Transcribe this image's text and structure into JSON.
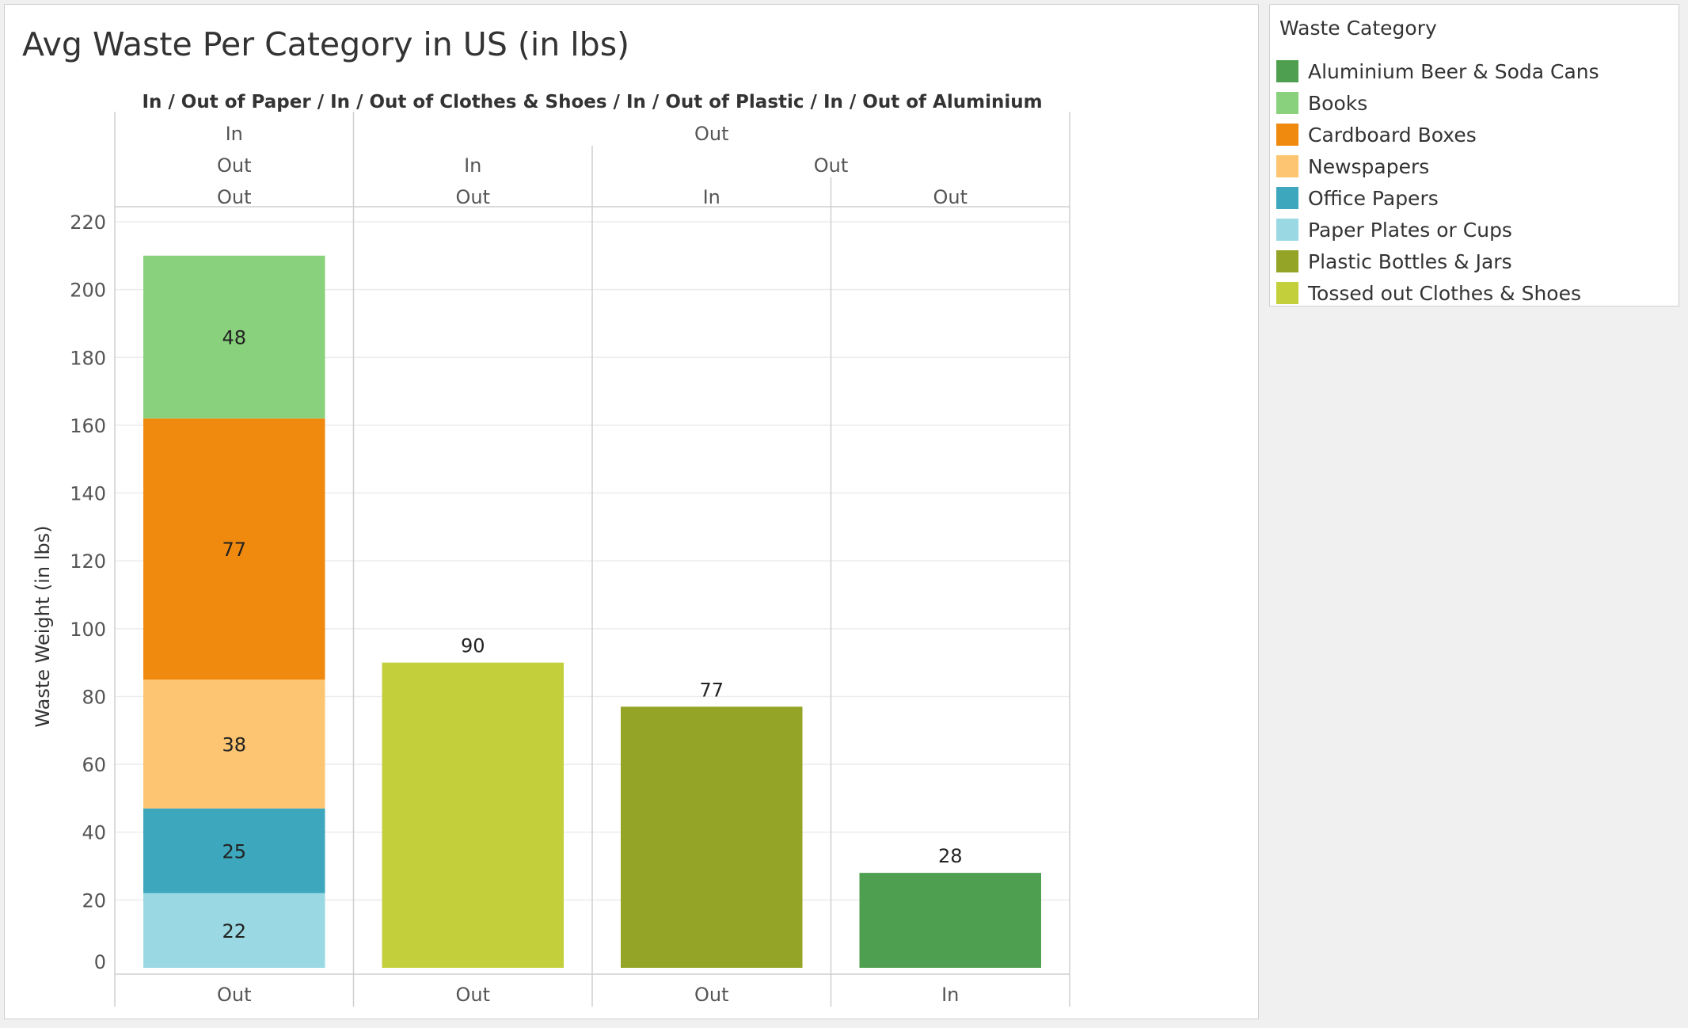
{
  "chart_data": {
    "type": "bar",
    "stacked": true,
    "title": "Avg Waste Per Category in US (in lbs)",
    "column_header_title": {
      "segments": [
        "In / Out of Paper",
        "In / Out of Clothes & Shoes",
        "In / Out of Plastic",
        "In / Out of Aluminium"
      ],
      "separator": "/"
    },
    "header_rows": [
      [
        {
          "label": "In",
          "span": [
            0,
            0
          ]
        },
        {
          "label": "Out",
          "span": [
            1,
            3
          ]
        }
      ],
      [
        {
          "label": "Out",
          "span": [
            0,
            0
          ]
        },
        {
          "label": "In",
          "span": [
            1,
            1
          ]
        },
        {
          "label": "Out",
          "span": [
            2,
            3
          ]
        }
      ],
      [
        {
          "label": "Out",
          "span": [
            0,
            0
          ]
        },
        {
          "label": "Out",
          "span": [
            1,
            1
          ]
        },
        {
          "label": "In",
          "span": [
            2,
            2
          ]
        },
        {
          "label": "Out",
          "span": [
            3,
            3
          ]
        }
      ]
    ],
    "categories": [
      "Out",
      "Out",
      "Out",
      "In"
    ],
    "ylabel": "Waste Weight (in lbs)",
    "xlabel": "",
    "ylim": [
      0,
      220
    ],
    "yticks": [
      0,
      20,
      40,
      60,
      80,
      100,
      120,
      140,
      160,
      180,
      200,
      220
    ],
    "grid": true,
    "series": [
      {
        "name": "Paper Plates or Cups",
        "color": "#9ad9e3",
        "values": [
          22,
          null,
          null,
          null
        ]
      },
      {
        "name": "Office Papers",
        "color": "#3ca7bd",
        "values": [
          25,
          null,
          null,
          null
        ]
      },
      {
        "name": "Newspapers",
        "color": "#fdc572",
        "values": [
          38,
          null,
          null,
          null
        ]
      },
      {
        "name": "Cardboard Boxes",
        "color": "#f08a0e",
        "values": [
          77,
          null,
          null,
          null
        ]
      },
      {
        "name": "Books",
        "color": "#8ad17d",
        "values": [
          48,
          null,
          null,
          null
        ]
      },
      {
        "name": "Tossed out Clothes & Shoes",
        "color": "#c3d03b",
        "values": [
          null,
          90,
          null,
          null
        ]
      },
      {
        "name": "Plastic Bottles & Jars",
        "color": "#94a426",
        "values": [
          null,
          null,
          77,
          null
        ]
      },
      {
        "name": "Aluminium Beer & Soda Cans",
        "color": "#4e9f4f",
        "values": [
          null,
          null,
          null,
          28
        ]
      }
    ],
    "legend": {
      "title": "Waste Category",
      "placement": "right",
      "items": [
        {
          "label": "Aluminium Beer & Soda Cans",
          "color": "#4e9f4f"
        },
        {
          "label": "Books",
          "color": "#8ad17d"
        },
        {
          "label": "Cardboard Boxes",
          "color": "#f08a0e"
        },
        {
          "label": "Newspapers",
          "color": "#fdc572"
        },
        {
          "label": "Office Papers",
          "color": "#3ca7bd"
        },
        {
          "label": "Paper Plates or Cups",
          "color": "#9ad9e3"
        },
        {
          "label": "Plastic Bottles & Jars",
          "color": "#94a426"
        },
        {
          "label": "Tossed out Clothes & Shoes",
          "color": "#c3d03b"
        }
      ]
    }
  }
}
